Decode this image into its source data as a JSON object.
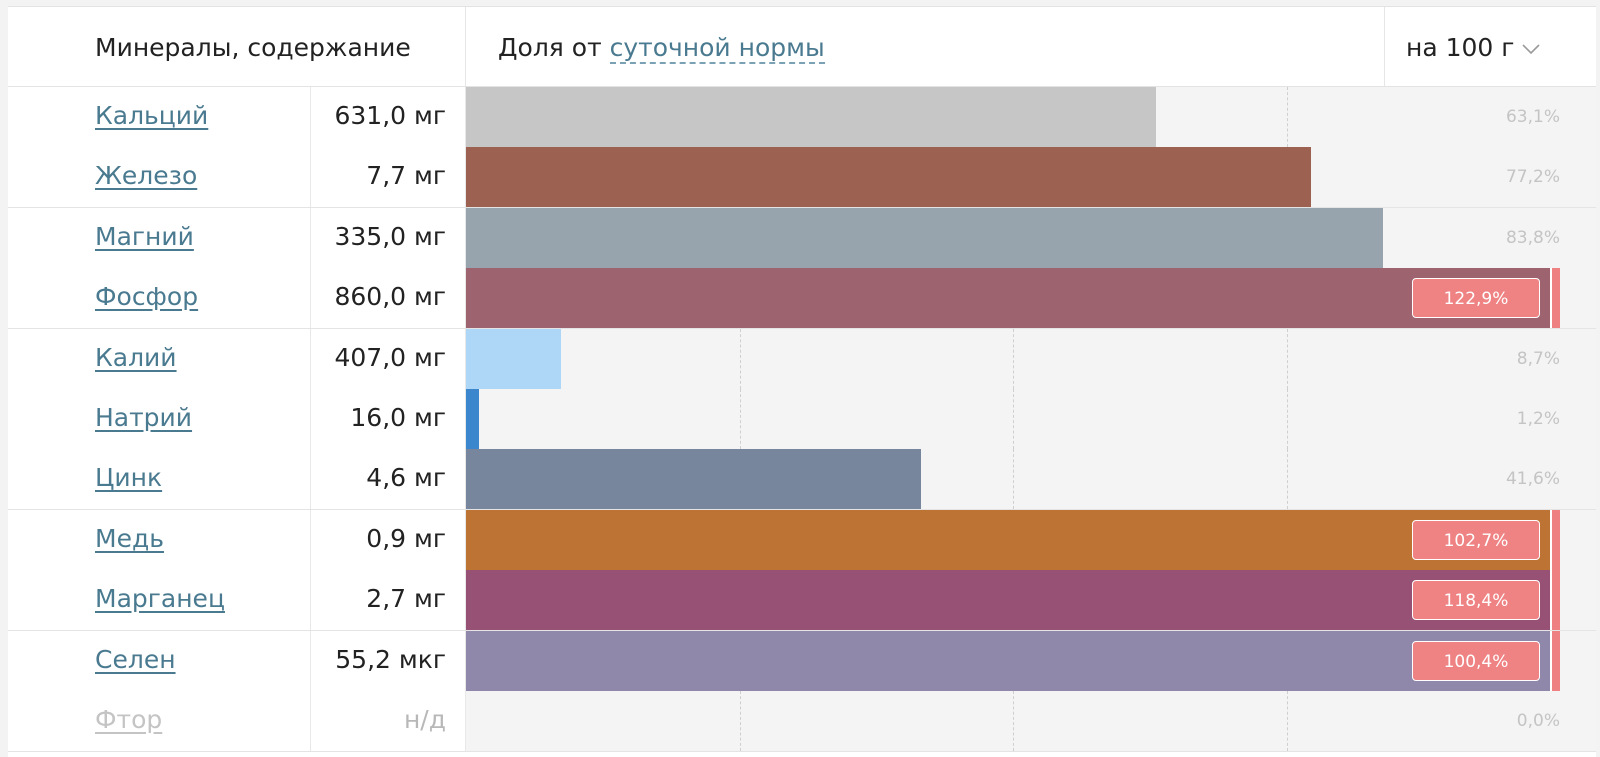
{
  "header": {
    "title": "Минералы, содержание",
    "share_prefix": "Доля от ",
    "share_link": "суточной нормы",
    "per_label": "на 100 г",
    "per_icon": "chevron-down-icon"
  },
  "colors": {
    "over_norm_badge": "#ef8283",
    "link": "#4a7a90",
    "track": "#f4f4f4"
  },
  "minerals": [
    {
      "name": "Кальций",
      "value": "631,0 мг",
      "percent": 63.1,
      "percent_label": "63,1%",
      "color": "#c5c6c5",
      "available": true
    },
    {
      "name": "Железо",
      "value": "7,7 мг",
      "percent": 77.2,
      "percent_label": "77,2%",
      "color": "#9c6150",
      "available": true
    },
    {
      "name": "Магний",
      "value": "335,0 мг",
      "percent": 83.8,
      "percent_label": "83,8%",
      "color": "#97a4ad",
      "available": true
    },
    {
      "name": "Фосфор",
      "value": "860,0 мг",
      "percent": 122.9,
      "percent_label": "122,9%",
      "color": "#9d646f",
      "available": true
    },
    {
      "name": "Калий",
      "value": "407,0 мг",
      "percent": 8.7,
      "percent_label": "8,7%",
      "color": "#aed6f6",
      "available": true
    },
    {
      "name": "Натрий",
      "value": "16,0 мг",
      "percent": 1.2,
      "percent_label": "1,2%",
      "color": "#3b86cc",
      "available": true
    },
    {
      "name": "Цинк",
      "value": "4,6 мг",
      "percent": 41.6,
      "percent_label": "41,6%",
      "color": "#77859d",
      "available": true
    },
    {
      "name": "Медь",
      "value": "0,9 мг",
      "percent": 102.7,
      "percent_label": "102,7%",
      "color": "#bc7333",
      "available": true
    },
    {
      "name": "Марганец",
      "value": "2,7 мг",
      "percent": 118.4,
      "percent_label": "118,4%",
      "color": "#965174",
      "available": true
    },
    {
      "name": "Селен",
      "value": "55,2 мкг",
      "percent": 100.4,
      "percent_label": "100,4%",
      "color": "#8f88ab",
      "available": true
    },
    {
      "name": "Фтор",
      "value": "н/д",
      "percent": 0,
      "percent_label": "0,0%",
      "color": "#c5c6c5",
      "available": false
    }
  ]
}
